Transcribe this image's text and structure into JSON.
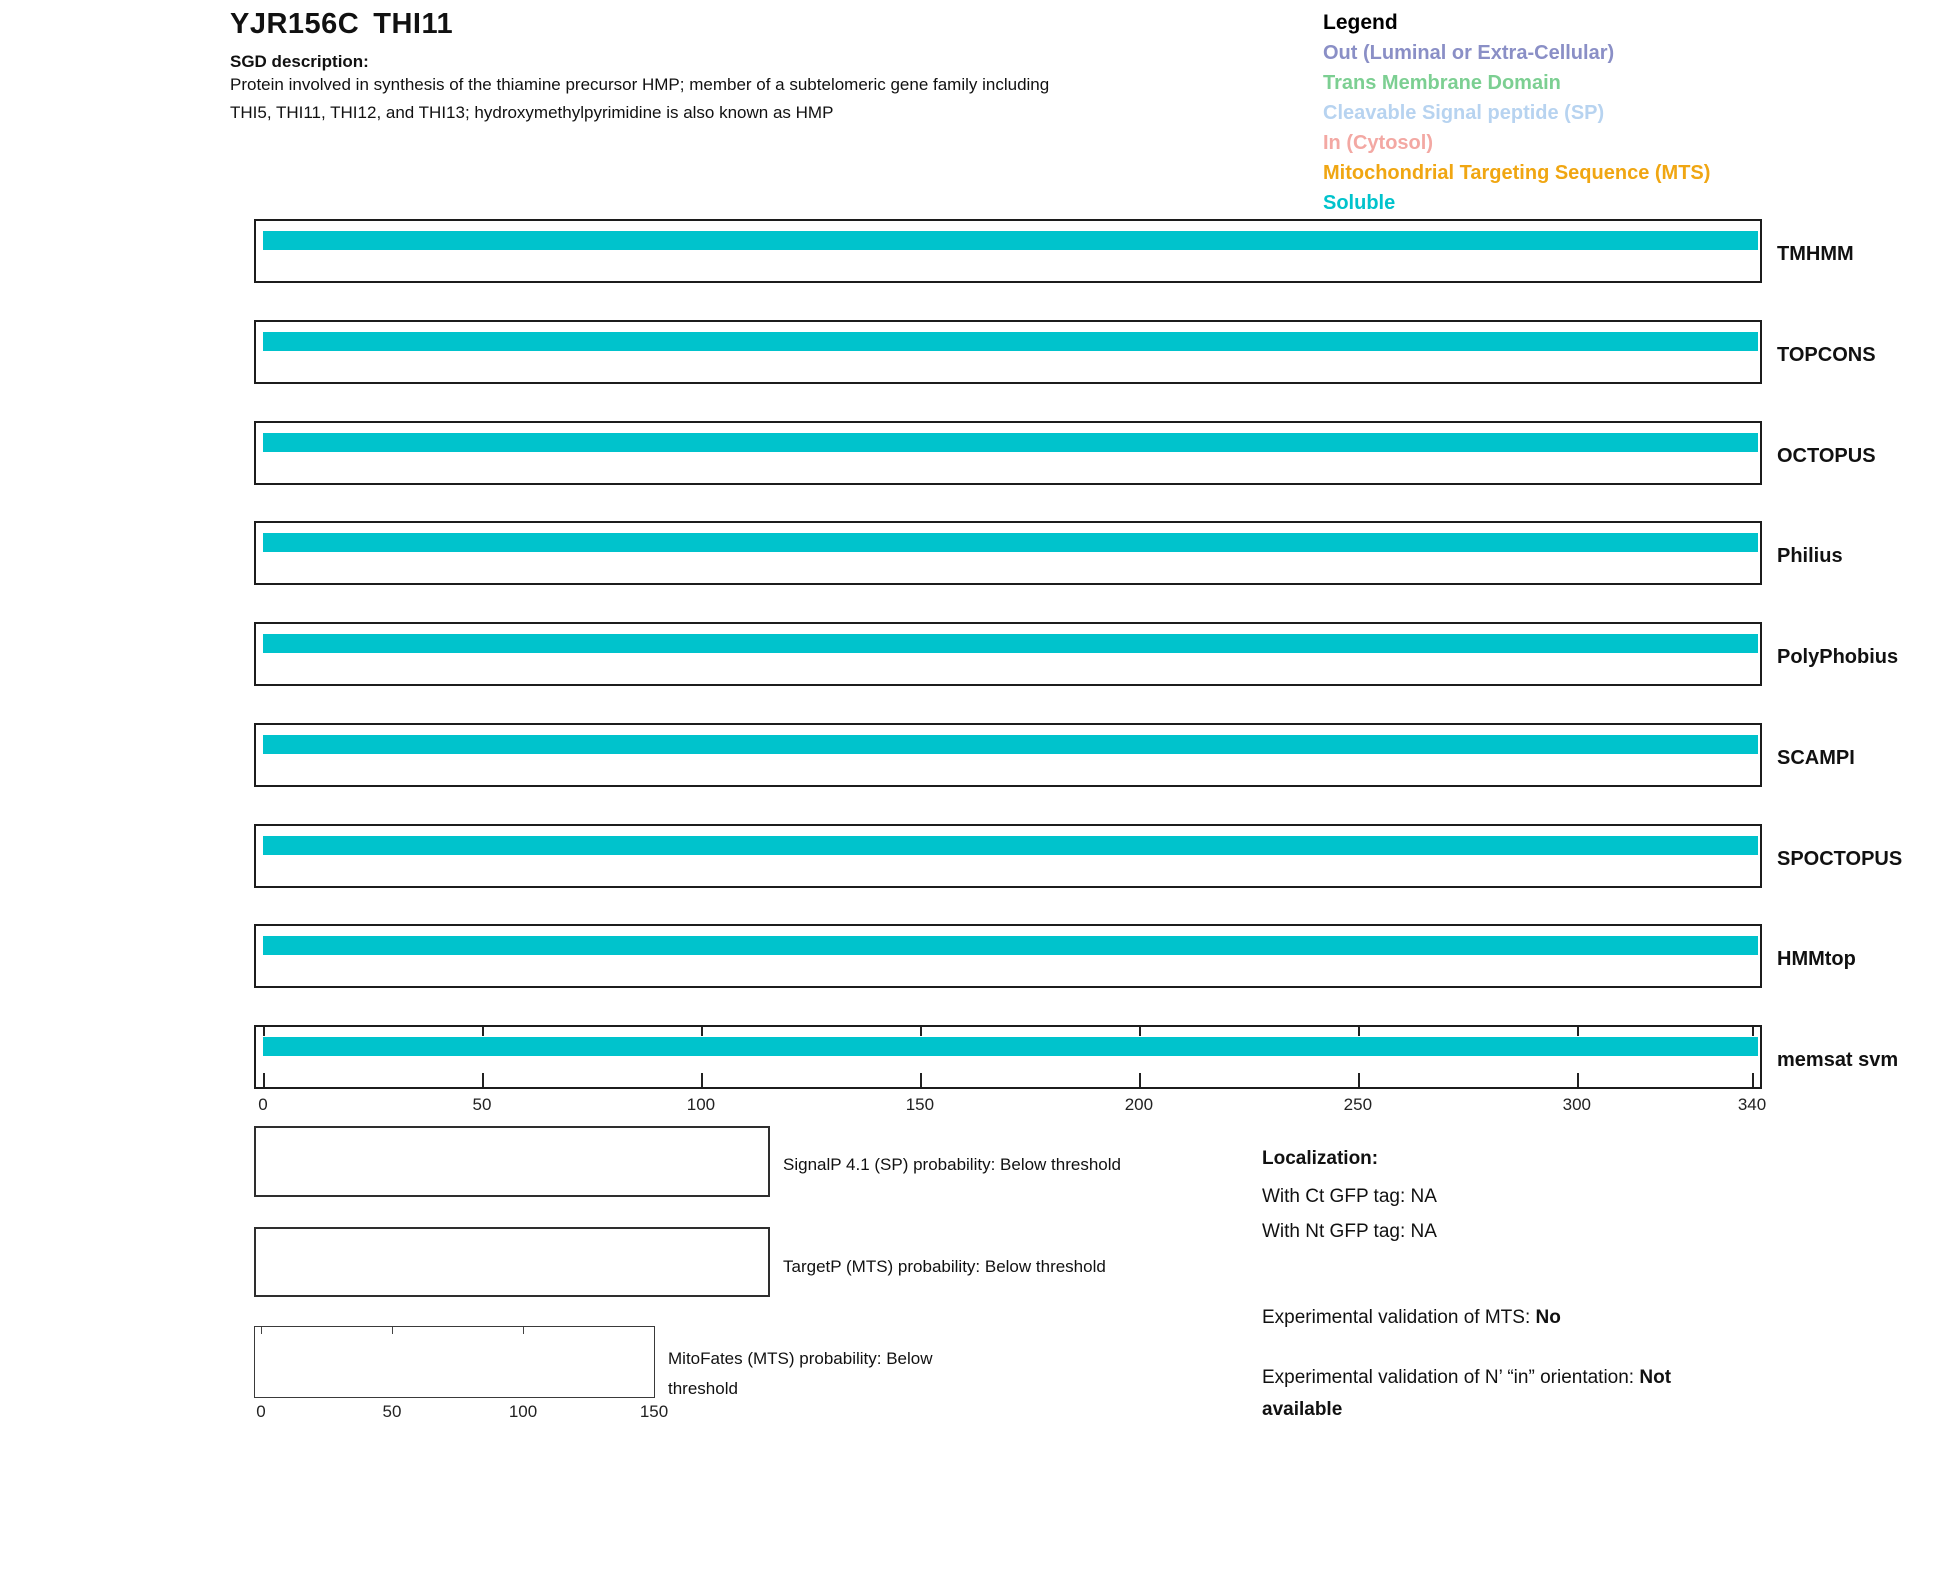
{
  "header": {
    "locus": "YJR156C",
    "gene": "THI11",
    "sgd_label": "SGD description:",
    "description_lines": [
      "Protein involved in synthesis of the thiamine precursor HMP; member of a subtelomeric gene family including",
      "THI5, THI11, THI12, and THI13; hydroxymethylpyrimidine is also known as HMP"
    ]
  },
  "legend": {
    "title": "Legend",
    "items": [
      {
        "label": "Out (Luminal or Extra-Cellular)",
        "color": "#8a8fc6"
      },
      {
        "label": "Trans Membrane Domain",
        "color": "#7ccf92"
      },
      {
        "label": "Cleavable Signal peptide (SP)",
        "color": "#b7d3f0"
      },
      {
        "label": "In (Cytosol)",
        "color": "#f3a8a3"
      },
      {
        "label": "Mitochondrial Targeting Sequence (MTS)",
        "color": "#f0a612"
      },
      {
        "label": "Soluble",
        "color": "#00c3cc"
      }
    ]
  },
  "chart_data": {
    "type": "topology-tracks",
    "axis": {
      "min": 0,
      "max": 340,
      "ticks": [
        0,
        50,
        100,
        150,
        200,
        250,
        300,
        340
      ]
    },
    "tracks": [
      {
        "name": "TMHMM",
        "segments": [
          {
            "class": "Soluble",
            "start": 0,
            "end": 340
          }
        ]
      },
      {
        "name": "TOPCONS",
        "segments": [
          {
            "class": "Soluble",
            "start": 0,
            "end": 340
          }
        ]
      },
      {
        "name": "OCTOPUS",
        "segments": [
          {
            "class": "Soluble",
            "start": 0,
            "end": 340
          }
        ]
      },
      {
        "name": "Philius",
        "segments": [
          {
            "class": "Soluble",
            "start": 0,
            "end": 340
          }
        ]
      },
      {
        "name": "PolyPhobius",
        "segments": [
          {
            "class": "Soluble",
            "start": 0,
            "end": 340
          }
        ]
      },
      {
        "name": "SCAMPI",
        "segments": [
          {
            "class": "Soluble",
            "start": 0,
            "end": 340
          }
        ]
      },
      {
        "name": "SPOCTOPUS",
        "segments": [
          {
            "class": "Soluble",
            "start": 0,
            "end": 340
          }
        ]
      },
      {
        "name": "HMMtop",
        "segments": [
          {
            "class": "Soluble",
            "start": 0,
            "end": 340
          }
        ]
      },
      {
        "name": "memsat svm",
        "segments": [
          {
            "class": "Soluble",
            "start": 0,
            "end": 340
          }
        ]
      }
    ],
    "probability_plots": [
      {
        "label": "SignalP 4.1 (SP) probability: Below threshold",
        "series": []
      },
      {
        "label": "TargetP (MTS) probability: Below threshold",
        "series": []
      },
      {
        "label": "MitoFates (MTS) probability: Below threshold",
        "axis": {
          "min": 0,
          "max": 150,
          "ticks": [
            0,
            50,
            100,
            150
          ]
        },
        "series": []
      }
    ]
  },
  "localization": {
    "title": "Localization:",
    "entries": [
      "With Ct GFP tag: NA",
      "With Nt GFP tag: NA"
    ],
    "mts_validation_label": "Experimental validation of MTS:",
    "mts_validation_value": "No",
    "orientation_label": "Experimental validation of N’ “in” orientation:",
    "orientation_value": "Not available"
  }
}
